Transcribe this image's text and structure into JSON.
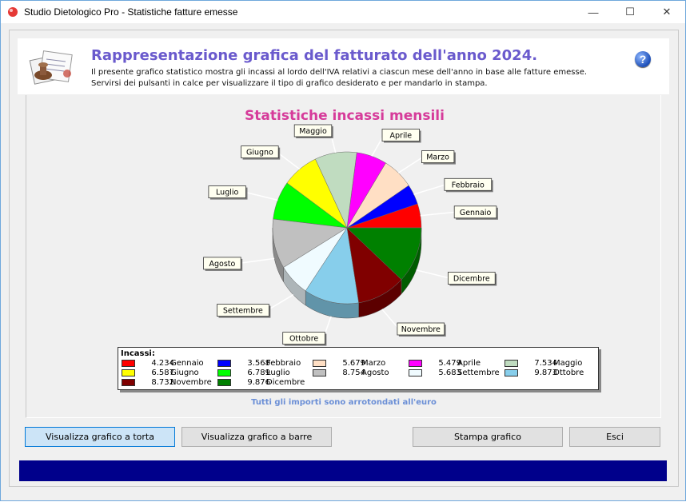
{
  "window": {
    "title": "Studio Dietologico Pro - Statistiche fatture emesse",
    "min_label": "—",
    "max_label": "☐",
    "close_label": "✕"
  },
  "header": {
    "title": "Rappresentazione grafica del fatturato dell'anno 2024.",
    "line1": "Il presente grafico statistico mostra gli incassi al lordo dell'IVA relativi a ciascun mese dell'anno in base alle fatture emesse.",
    "line2": "Servirsi dei pulsanti in calce per visualizzare il tipo di grafico desiderato e per mandarlo in stampa.",
    "help_label": "?"
  },
  "chart_data": {
    "type": "pie",
    "title": "Statistiche incassi mensili",
    "legend_title": "Incassi:",
    "slices": [
      {
        "name": "Gennaio",
        "value": 4234,
        "display": "4.234",
        "color": "#ff0000"
      },
      {
        "name": "Febbraio",
        "value": 3568,
        "display": "3.568",
        "color": "#0000ff"
      },
      {
        "name": "Marzo",
        "value": 5679,
        "display": "5.679",
        "color": "#ffdfc4"
      },
      {
        "name": "Aprile",
        "value": 5479,
        "display": "5.479",
        "color": "#ff00ff"
      },
      {
        "name": "Maggio",
        "value": 7534,
        "display": "7.534",
        "color": "#c0dcc0"
      },
      {
        "name": "Giugno",
        "value": 6587,
        "display": "6.587",
        "color": "#ffff00"
      },
      {
        "name": "Luglio",
        "value": 6789,
        "display": "6.789",
        "color": "#00ff00"
      },
      {
        "name": "Agosto",
        "value": 8754,
        "display": "8.754",
        "color": "#c0c0c0"
      },
      {
        "name": "Settembre",
        "value": 5683,
        "display": "5.683",
        "color": "#f0fbff"
      },
      {
        "name": "Ottobre",
        "value": 9873,
        "display": "9.873",
        "color": "#87ceeb"
      },
      {
        "name": "Novembre",
        "value": 8732,
        "display": "8.732",
        "color": "#800000"
      },
      {
        "name": "Dicembre",
        "value": 9876,
        "display": "9.876",
        "color": "#008000"
      }
    ],
    "footnote": "Tutti gli importi sono arrotondati all'euro"
  },
  "buttons": {
    "pie": "Visualizza grafico a torta",
    "bar": "Visualizza grafico a barre",
    "print": "Stampa grafico",
    "exit": "Esci"
  },
  "colors": {
    "title_accent": "#6a5acd",
    "chart_title": "#d63b9a",
    "status_bar": "#00008b"
  }
}
